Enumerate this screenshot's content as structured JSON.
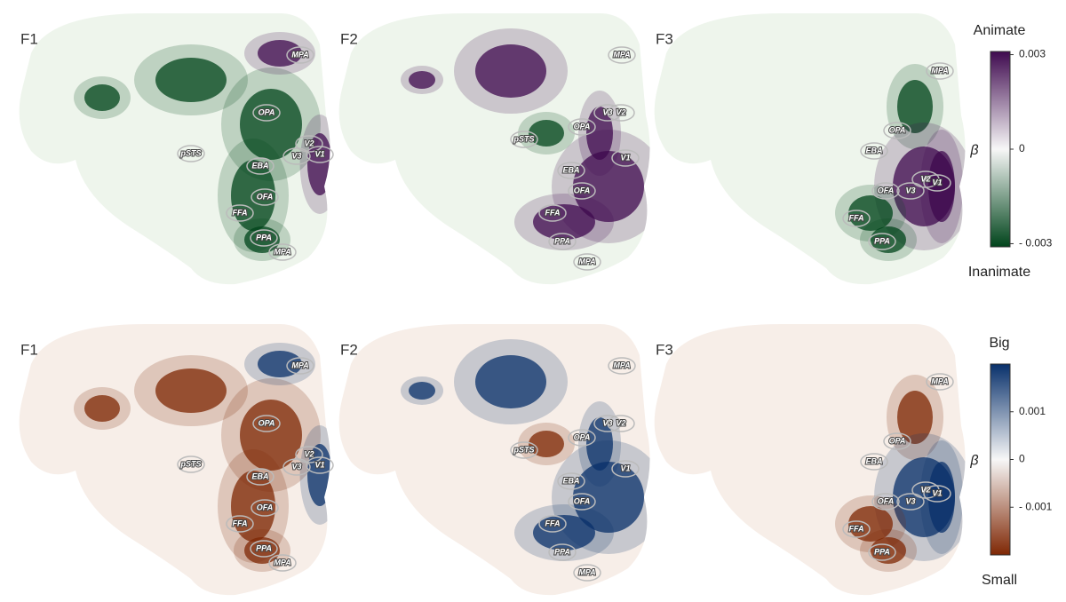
{
  "rows": [
    {
      "panels": [
        {
          "label": "F1",
          "rois": [
            "MPA",
            "OPA",
            "pSTS",
            "EBA",
            "V2",
            "V3",
            "V1",
            "OFA",
            "FFA",
            "PPA",
            "MPA"
          ]
        },
        {
          "label": "F2",
          "rois": [
            "MPA",
            "V3",
            "V2",
            "OPA",
            "pSTS",
            "V1",
            "EBA",
            "OFA",
            "FFA",
            "PPA",
            "MPA"
          ]
        },
        {
          "label": "F3",
          "rois": [
            "MPA",
            "OPA",
            "EBA",
            "V2",
            "V1",
            "OFA",
            "V3",
            "FFA",
            "PPA"
          ]
        }
      ],
      "colorbar": {
        "top_label": "Animate",
        "bottom_label": "Inanimate",
        "symbol": "β",
        "lim": [
          -0.0031,
          0.0031
        ],
        "ticks": [
          0.003,
          0,
          {
            "value": -0.003,
            "label": "- 0.003"
          }
        ],
        "colors": [
          "#3f0a4f",
          "#f7f7f7",
          "#00441b"
        ]
      }
    },
    {
      "panels": [
        {
          "label": "F1",
          "rois": [
            "MPA",
            "OPA",
            "pSTS",
            "EBA",
            "V2",
            "V3",
            "V1",
            "OFA",
            "FFA",
            "PPA",
            "MPA"
          ]
        },
        {
          "label": "F2",
          "rois": [
            "MPA",
            "V3",
            "V2",
            "OPA",
            "pSTS",
            "V1",
            "EBA",
            "OFA",
            "FFA",
            "PPA",
            "MPA"
          ]
        },
        {
          "label": "F3",
          "rois": [
            "MPA",
            "OPA",
            "EBA",
            "V2",
            "V1",
            "OFA",
            "V3",
            "FFA",
            "PPA"
          ]
        }
      ],
      "colorbar": {
        "top_label": "Big",
        "bottom_label": "Small",
        "symbol": "β",
        "lim": [
          -0.002,
          0.002
        ],
        "ticks": [
          0.001,
          0,
          {
            "value": -0.001,
            "label": "- 0.001"
          }
        ],
        "colors": [
          "#08306b",
          "#f7f7f7",
          "#7f2704"
        ]
      }
    }
  ]
}
